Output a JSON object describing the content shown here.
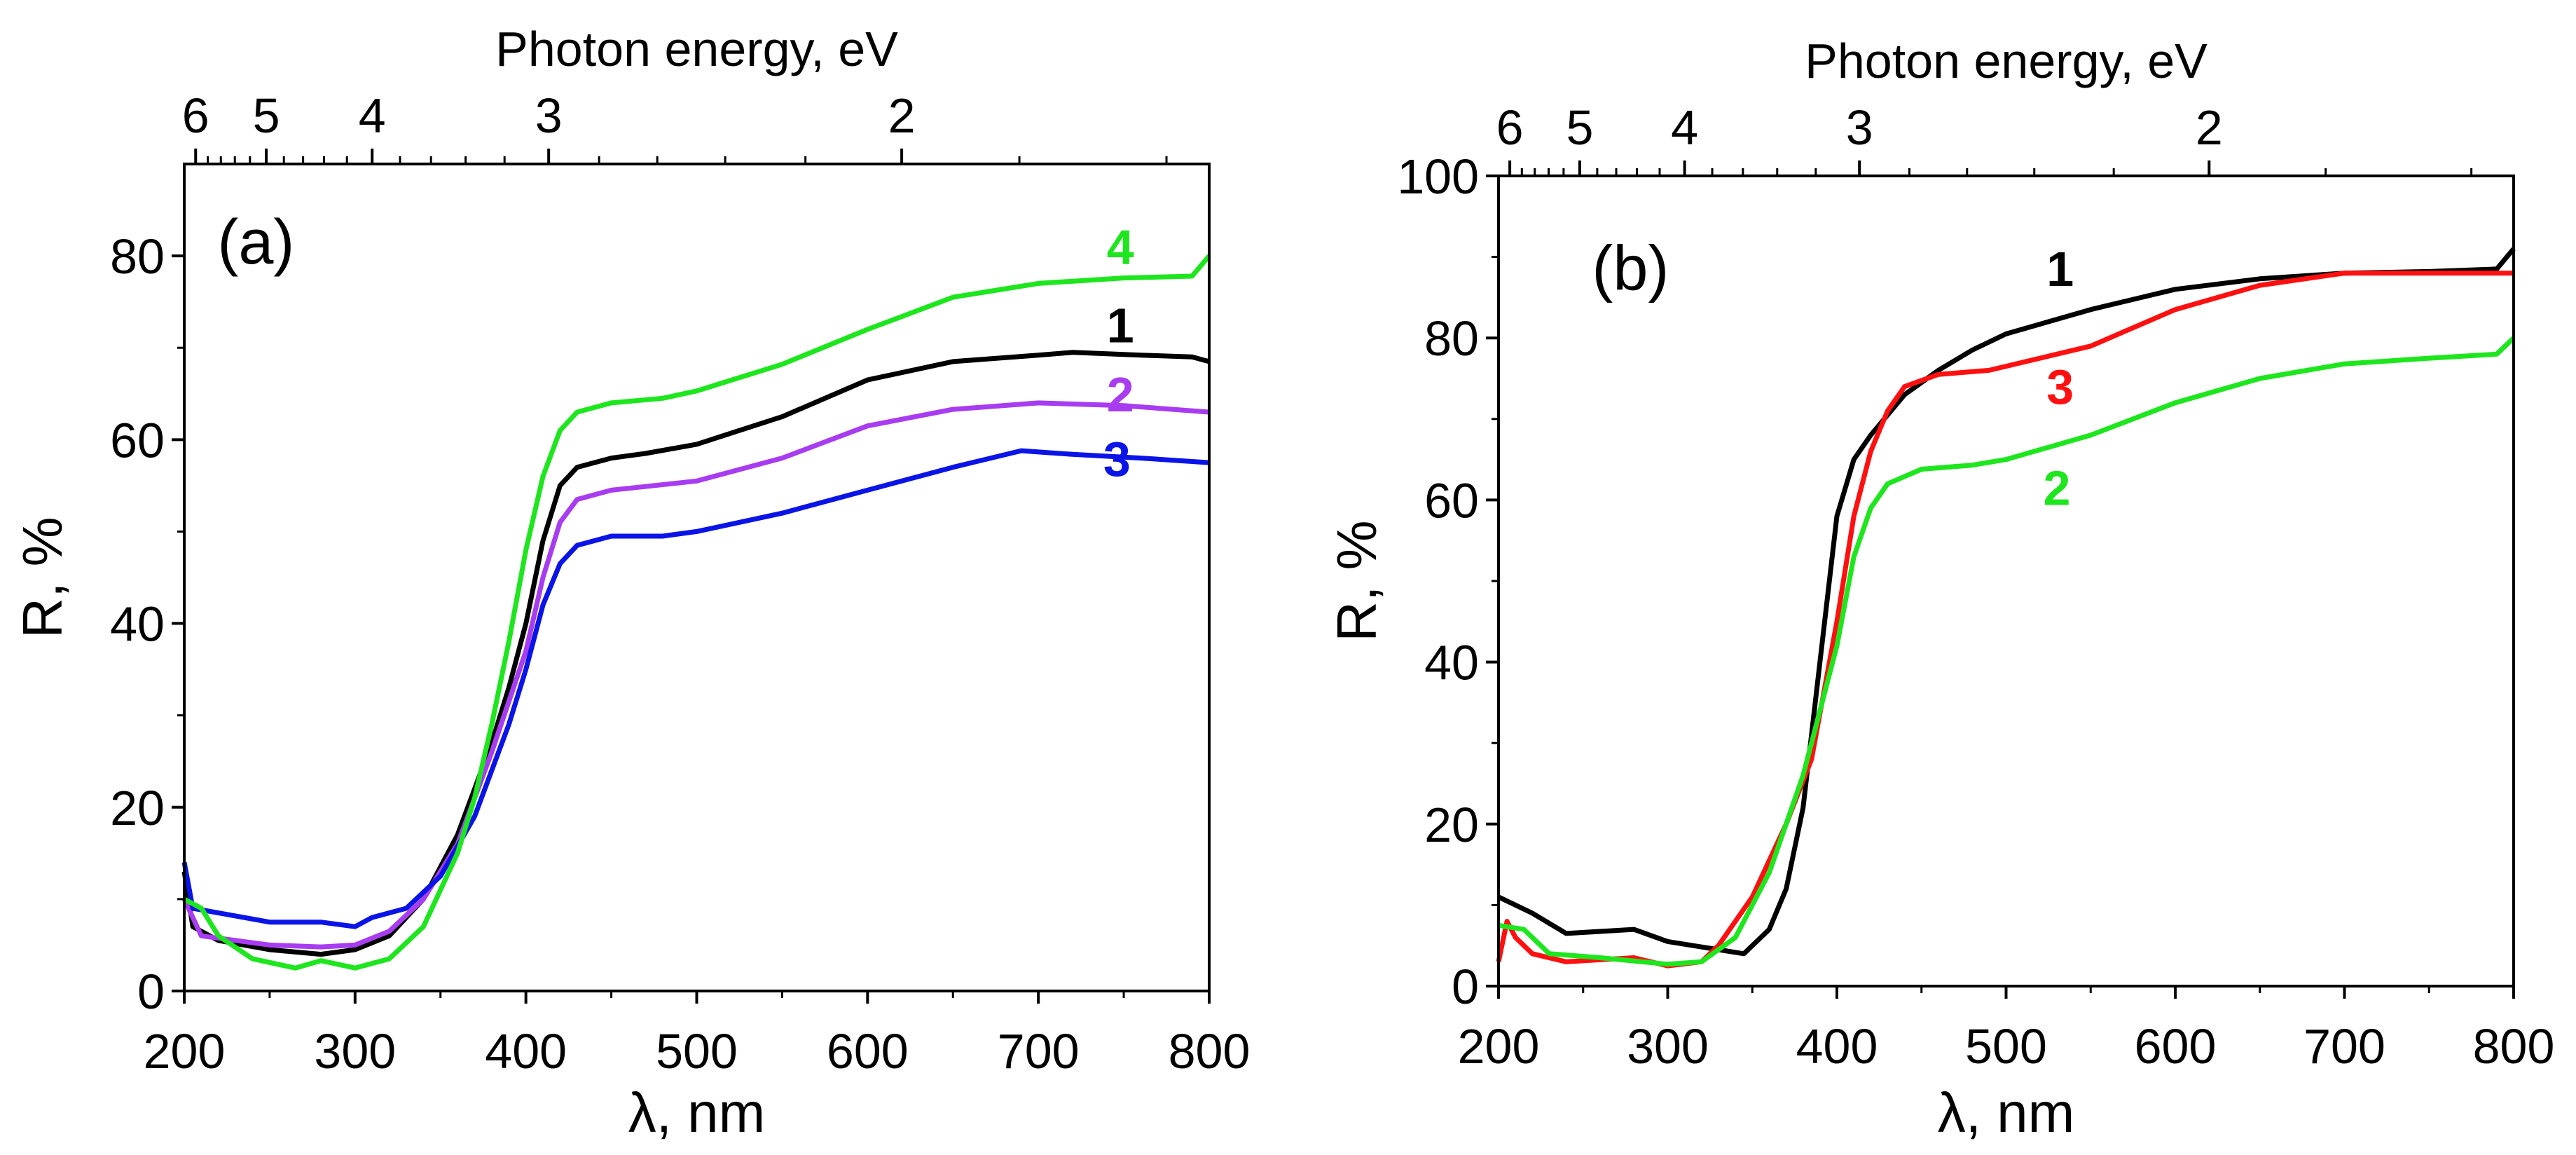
{
  "chart_data": [
    {
      "type": "line",
      "panel_label": "(a)",
      "xlabel": "λ, nm",
      "ylabel": "R, %",
      "top_xlabel": "Photon energy, eV",
      "xlim": [
        200,
        800
      ],
      "ylim": [
        0,
        90
      ],
      "xticks": [
        200,
        300,
        400,
        500,
        600,
        700,
        800
      ],
      "yticks": [
        0,
        20,
        40,
        60,
        80
      ],
      "top_ticks_eV": [
        6,
        5,
        4,
        3,
        2
      ],
      "grid": false,
      "series": [
        {
          "name": "1",
          "color": "#000000",
          "label_at": [
            748,
            72
          ],
          "x": [
            200,
            205,
            220,
            250,
            280,
            300,
            320,
            340,
            360,
            380,
            390,
            400,
            410,
            420,
            430,
            450,
            470,
            500,
            550,
            600,
            650,
            700,
            720,
            760,
            790,
            800
          ],
          "y": [
            13,
            7,
            5.5,
            4.5,
            4,
            4.5,
            6,
            10,
            17,
            27,
            33,
            40,
            49,
            55,
            57,
            58,
            58.5,
            59.5,
            62.5,
            66.5,
            68.5,
            69.2,
            69.5,
            69.2,
            69,
            68.5
          ]
        },
        {
          "name": "2",
          "color": "#a83cf0",
          "label_at": [
            748,
            64.5
          ],
          "x": [
            200,
            210,
            250,
            280,
            300,
            320,
            340,
            360,
            380,
            400,
            410,
            420,
            430,
            450,
            500,
            550,
            600,
            650,
            700,
            750,
            800
          ],
          "y": [
            10,
            6,
            5,
            4.8,
            5,
            6.5,
            10,
            16,
            26,
            37,
            45,
            51,
            53.5,
            54.5,
            55.5,
            58,
            61.5,
            63.3,
            64,
            63.7,
            63
          ]
        },
        {
          "name": "3",
          "color": "#0a14e6",
          "label_at": [
            746,
            58.5
          ],
          "x": [
            200,
            205,
            220,
            250,
            280,
            300,
            310,
            330,
            350,
            370,
            390,
            400,
            410,
            420,
            430,
            450,
            480,
            500,
            550,
            600,
            650,
            690,
            720,
            760,
            800
          ],
          "y": [
            14,
            9,
            8.5,
            7.5,
            7.5,
            7,
            8,
            9,
            12.5,
            19,
            29,
            35,
            42,
            46.5,
            48.5,
            49.5,
            49.5,
            50,
            52,
            54.5,
            57,
            58.8,
            58.4,
            58,
            57.5
          ]
        },
        {
          "name": "4",
          "color": "#1ee61e",
          "label_at": [
            748,
            80.5
          ],
          "x": [
            200,
            210,
            220,
            240,
            265,
            280,
            300,
            320,
            340,
            360,
            370,
            380,
            390,
            400,
            410,
            420,
            430,
            450,
            480,
            500,
            550,
            600,
            650,
            700,
            750,
            790,
            800
          ],
          "y": [
            10,
            9,
            6,
            3.5,
            2.5,
            3.3,
            2.5,
            3.5,
            7,
            15,
            21,
            29,
            38,
            48,
            56,
            61,
            63,
            64,
            64.5,
            65.3,
            68.2,
            72,
            75.5,
            77,
            77.6,
            77.8,
            80
          ]
        }
      ]
    },
    {
      "type": "line",
      "panel_label": "(b)",
      "xlabel": "λ, nm",
      "ylabel": "R, %",
      "top_xlabel": "Photon energy, eV",
      "xlim": [
        200,
        800
      ],
      "ylim": [
        0,
        100
      ],
      "xticks": [
        200,
        300,
        400,
        500,
        600,
        700,
        800
      ],
      "yticks": [
        0,
        20,
        40,
        60,
        80,
        100
      ],
      "top_ticks_eV": [
        6,
        5,
        4,
        3,
        2
      ],
      "grid": false,
      "series": [
        {
          "name": "1",
          "color": "#000000",
          "label_at": [
            532,
            88
          ],
          "x": [
            200,
            220,
            240,
            280,
            300,
            330,
            345,
            360,
            370,
            380,
            390,
            400,
            410,
            420,
            440,
            460,
            480,
            500,
            550,
            600,
            650,
            700,
            750,
            790,
            800
          ],
          "y": [
            11,
            9,
            6.5,
            7,
            5.5,
            4.5,
            4,
            7,
            12,
            22,
            40,
            58,
            65,
            68,
            73,
            76,
            78.5,
            80.5,
            83.5,
            86,
            87.3,
            88,
            88.2,
            88.5,
            91
          ]
        },
        {
          "name": "3",
          "color": "#ff1010",
          "label_at": [
            532,
            73.5
          ],
          "x": [
            200,
            205,
            210,
            220,
            240,
            280,
            300,
            320,
            330,
            350,
            370,
            385,
            400,
            410,
            420,
            430,
            440,
            460,
            490,
            520,
            550,
            600,
            650,
            700,
            750,
            800
          ],
          "y": [
            3,
            8,
            6,
            4,
            3,
            3.5,
            2.5,
            3,
            5,
            11,
            20,
            28,
            45,
            58,
            66,
            71,
            74,
            75.5,
            76,
            77.5,
            79,
            83.5,
            86.5,
            88,
            88,
            88
          ]
        },
        {
          "name": "2",
          "color": "#1ee61e",
          "label_at": [
            530,
            61
          ],
          "x": [
            200,
            215,
            230,
            260,
            300,
            320,
            340,
            360,
            380,
            400,
            410,
            420,
            430,
            450,
            480,
            500,
            550,
            600,
            650,
            700,
            750,
            790,
            800
          ],
          "y": [
            7.5,
            7,
            4,
            3.5,
            2.7,
            3,
            6,
            14,
            26,
            42,
            53,
            59,
            62,
            63.8,
            64.3,
            65,
            68,
            72,
            75,
            76.8,
            77.5,
            78,
            80
          ]
        }
      ]
    }
  ]
}
